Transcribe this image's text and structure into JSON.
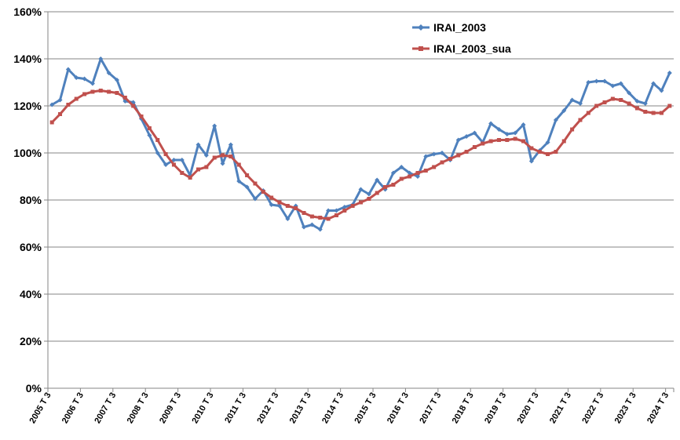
{
  "chart_data": {
    "type": "line",
    "title": "",
    "xlabel": "",
    "ylabel": "",
    "ylim": [
      0,
      160
    ],
    "yticks": [
      "0%",
      "20%",
      "40%",
      "60%",
      "80%",
      "100%",
      "120%",
      "140%",
      "160%"
    ],
    "grid": true,
    "legend_position": "top-right",
    "x_tick_labels": [
      "2005 T 3",
      "2006 T 3",
      "2007 T 3",
      "2008 T 3",
      "2009 T 3",
      "2010 T 3",
      "2011 T 3",
      "2012 T 3",
      "2013 T 3",
      "2014 T 3",
      "2015 T 3",
      "2016 T 3",
      "2017 T 3",
      "2018 T 3",
      "2019 T 3",
      "2020 T 3",
      "2021 T 3",
      "2022 T 3",
      "2023 T 3",
      "2024 T 3"
    ],
    "first_period": "2005 T 3",
    "series": [
      {
        "name": "IRAI_2003",
        "color": "#4F81BD",
        "marker": "diamond",
        "values": [
          120.5,
          122.5,
          135.5,
          132,
          131.5,
          129.5,
          140,
          134,
          131,
          122,
          121.5,
          114.5,
          107.5,
          100,
          95,
          97,
          97,
          90.5,
          103.5,
          99,
          111.5,
          95.5,
          103.5,
          88,
          85.5,
          80.5,
          84,
          78,
          77.5,
          72,
          77.5,
          68.5,
          69.5,
          67.5,
          75.5,
          75.5,
          77,
          78,
          84.5,
          82.5,
          88.5,
          84.5,
          91.5,
          94,
          91.5,
          90,
          98.5,
          99.5,
          100,
          97,
          105.5,
          107,
          108.5,
          104.5,
          112.5,
          110,
          108,
          108.5,
          112,
          96.5,
          101,
          104.5,
          114,
          118,
          122.5,
          121,
          130,
          130.5,
          130.5,
          128.5,
          129.5,
          125.5,
          122,
          121,
          129.5,
          126.5,
          134
        ]
      },
      {
        "name": "IRAI_2003_sua",
        "color": "#C0504D",
        "marker": "square",
        "values": [
          113,
          116.5,
          120.5,
          123,
          125,
          126,
          126.5,
          126,
          125.5,
          123.5,
          120,
          115.5,
          110.5,
          105.5,
          99.5,
          95,
          91.5,
          89.5,
          93,
          94,
          98,
          99,
          98.5,
          95,
          90.5,
          87,
          83.5,
          81,
          79,
          77.5,
          76.5,
          74.5,
          73,
          72.5,
          72,
          73.5,
          75.5,
          77.5,
          79,
          80.5,
          83,
          85.5,
          86.5,
          89,
          90,
          91.5,
          92.5,
          94,
          96,
          97.5,
          99,
          100.5,
          102.5,
          104,
          105,
          105.5,
          105.5,
          106,
          105,
          102,
          100.5,
          99.5,
          100.5,
          105,
          110,
          114,
          117,
          120,
          121.5,
          123,
          122.5,
          121,
          119,
          117.5,
          117,
          117,
          120
        ]
      }
    ]
  }
}
